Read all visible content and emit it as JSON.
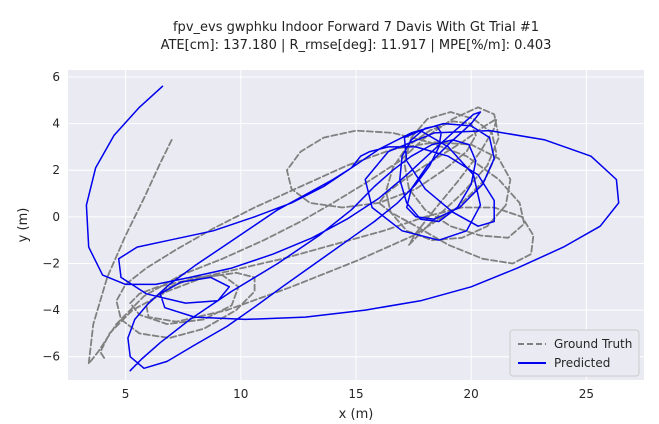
{
  "chart_data": {
    "type": "line",
    "title": "fpv_evs gwphku Indoor Forward 7 Davis With Gt Trial #1",
    "subtitle": "ATE[cm]: 137.180 | R_rmse[deg]: 11.917 | MPE[%/m]: 0.403",
    "xlabel": "x (m)",
    "ylabel": "y (m)",
    "xlim": [
      2.5,
      27.5
    ],
    "ylim": [
      -7.0,
      6.3
    ],
    "xticks": [
      5,
      10,
      15,
      20,
      25
    ],
    "yticks": [
      -6,
      -4,
      -2,
      0,
      2,
      4,
      6
    ],
    "ytick_labels": [
      "−6",
      "−4",
      "−2",
      "0",
      "2",
      "4",
      "6"
    ],
    "grid": true,
    "legend": "lower-right",
    "series": [
      {
        "name": "Ground Truth",
        "color": "#808080",
        "style": "dashed",
        "x": [
          7.0,
          6.5,
          5.8,
          5.0,
          4.2,
          3.6,
          3.4,
          3.8,
          4.6,
          5.8,
          7.4,
          9.2,
          11.0,
          12.6,
          14.0,
          15.5,
          16.9,
          18.0,
          19.2,
          20.3,
          21.0,
          21.2,
          20.7,
          19.6,
          18.4,
          17.6,
          17.3,
          17.6,
          18.4,
          19.4,
          20.4,
          21.0,
          21.1,
          20.6,
          19.6,
          18.3,
          17.1,
          16.3,
          16.0,
          16.5,
          17.6,
          19.0,
          20.5,
          21.8,
          22.6,
          22.7,
          22.2,
          21.0,
          19.6,
          18.0,
          16.2,
          14.0,
          11.8,
          9.6,
          7.8,
          6.4,
          5.6,
          5.2,
          5.6,
          6.8,
          8.4,
          9.6,
          9.9,
          9.2,
          8.0,
          6.7,
          5.9,
          6.0,
          7.2,
          9.4,
          12.2,
          15.0,
          17.5,
          19.4,
          20.6,
          21.1,
          20.9,
          20.1,
          19.1,
          18.1,
          17.4,
          17.1,
          17.3,
          18.0,
          19.1,
          20.4,
          21.6,
          22.3,
          22.1,
          21.2,
          19.8,
          18.2,
          16.6,
          15.0,
          13.6,
          12.6,
          12.0,
          12.2,
          13.0,
          14.4,
          16.0,
          17.6,
          18.8,
          19.8,
          20.2,
          20.0,
          19.2,
          18.2,
          17.2,
          16.6,
          16.3,
          16.5,
          17.2,
          18.3,
          19.6,
          20.7,
          21.5,
          21.7,
          21.2,
          20.0,
          18.4,
          16.6,
          14.6,
          12.6,
          10.6,
          8.8,
          7.2,
          5.9,
          5.0,
          4.6,
          4.8,
          5.6,
          6.9,
          8.4,
          9.8,
          10.6,
          10.6,
          9.8,
          8.4,
          6.8,
          5.3,
          4.3,
          3.9,
          4.1
        ],
        "y": [
          3.3,
          2.3,
          0.8,
          -0.8,
          -2.6,
          -4.6,
          -6.3,
          -5.8,
          -4.6,
          -3.4,
          -2.5,
          -1.8,
          -1.0,
          -0.2,
          0.6,
          1.5,
          2.4,
          3.4,
          4.2,
          4.7,
          4.4,
          3.4,
          2.2,
          1.0,
          -0.1,
          -0.9,
          -1.2,
          -0.7,
          0.3,
          1.5,
          2.8,
          3.8,
          4.2,
          3.9,
          3.2,
          2.4,
          1.6,
          1.0,
          0.6,
          0.2,
          -0.4,
          -1.2,
          -1.8,
          -2.0,
          -1.6,
          -0.8,
          0.0,
          0.4,
          0.4,
          0.0,
          -0.6,
          -1.2,
          -1.8,
          -2.3,
          -2.7,
          -3.0,
          -3.3,
          -3.7,
          -4.2,
          -4.6,
          -4.4,
          -3.8,
          -3.0,
          -2.5,
          -2.6,
          -3.1,
          -3.8,
          -4.3,
          -4.5,
          -4.0,
          -3.0,
          -1.9,
          -0.8,
          0.4,
          1.6,
          2.7,
          3.6,
          4.2,
          4.5,
          4.2,
          3.4,
          2.3,
          1.2,
          0.3,
          -0.4,
          -0.8,
          -0.9,
          -0.3,
          0.6,
          1.6,
          2.6,
          3.2,
          3.6,
          3.7,
          3.4,
          2.8,
          2.0,
          1.2,
          0.6,
          0.4,
          0.6,
          1.2,
          2.0,
          2.8,
          3.5,
          4.0,
          4.1,
          3.7,
          3.0,
          2.1,
          1.1,
          0.2,
          -0.6,
          -1.0,
          -0.9,
          -0.4,
          0.5,
          1.6,
          2.5,
          3.1,
          3.2,
          2.9,
          2.2,
          1.3,
          0.4,
          -0.5,
          -1.4,
          -2.2,
          -2.9,
          -3.6,
          -4.4,
          -5.0,
          -5.2,
          -4.8,
          -4.0,
          -3.2,
          -2.6,
          -2.4,
          -2.6,
          -3.2,
          -4.0,
          -5.0,
          -5.8,
          -6.1
        ]
      },
      {
        "name": "Predicted",
        "color": "#0000ee",
        "style": "solid",
        "x": [
          6.6,
          5.6,
          4.5,
          3.7,
          3.3,
          3.4,
          4.0,
          5.0,
          6.3,
          7.8,
          9.6,
          11.4,
          13.1,
          14.6,
          16.0,
          17.2,
          18.3,
          19.3,
          20.1,
          20.4,
          20.0,
          19.1,
          18.1,
          17.4,
          17.2,
          17.6,
          18.4,
          19.5,
          20.5,
          21.0,
          20.8,
          20.0,
          18.8,
          17.4,
          16.0,
          14.8,
          13.6,
          12.2,
          10.6,
          8.8,
          6.9,
          5.5,
          4.7,
          4.8,
          5.9,
          7.6,
          9.0,
          9.5,
          8.7,
          7.4,
          6.5,
          6.7,
          8.0,
          10.2,
          12.8,
          15.4,
          17.8,
          20.0,
          22.0,
          24.0,
          25.6,
          26.4,
          26.3,
          25.2,
          23.2,
          20.8,
          18.4,
          16.4,
          15.4,
          15.7,
          17.0,
          18.6,
          19.8,
          20.4,
          20.1,
          19.0,
          17.8,
          17.1,
          17.2,
          18.0,
          19.2,
          20.3,
          21.0,
          21.0,
          20.3,
          19.0,
          17.6,
          16.4,
          15.6,
          15.2,
          14.8,
          14.0,
          12.9,
          11.6,
          10.4,
          9.2,
          8.0,
          6.9,
          6.0,
          5.4,
          5.1,
          5.2,
          5.8,
          6.8,
          8.0,
          9.4,
          10.7,
          11.8,
          12.8,
          13.8,
          14.8,
          15.8,
          16.8,
          17.6,
          18.2,
          18.6,
          18.7,
          18.5,
          18.0,
          17.4,
          17.0,
          16.9,
          17.2,
          17.8,
          18.6,
          19.4,
          20.0,
          20.2,
          19.9,
          19.2,
          18.3,
          17.4,
          16.6,
          15.8,
          14.8,
          13.4,
          11.6,
          9.6,
          7.8,
          6.5,
          5.7,
          5.3,
          5.2
        ],
        "y": [
          5.6,
          4.7,
          3.5,
          2.1,
          0.5,
          -1.3,
          -2.5,
          -2.9,
          -2.9,
          -2.6,
          -2.2,
          -1.6,
          -0.9,
          -0.1,
          0.8,
          1.8,
          2.8,
          3.7,
          4.4,
          4.5,
          4.0,
          3.2,
          2.2,
          1.2,
          0.4,
          0.0,
          -0.1,
          0.4,
          1.4,
          2.5,
          3.4,
          3.9,
          4.0,
          3.6,
          2.9,
          2.1,
          1.3,
          0.6,
          0.0,
          -0.6,
          -1.0,
          -1.3,
          -1.8,
          -2.6,
          -3.3,
          -3.7,
          -3.6,
          -3.0,
          -2.6,
          -2.8,
          -3.3,
          -3.9,
          -4.3,
          -4.4,
          -4.3,
          -4.0,
          -3.6,
          -3.0,
          -2.2,
          -1.3,
          -0.4,
          0.6,
          1.6,
          2.6,
          3.3,
          3.7,
          3.6,
          2.8,
          1.6,
          0.4,
          -0.6,
          -1.0,
          -0.6,
          0.5,
          1.8,
          3.0,
          3.7,
          3.4,
          2.4,
          1.2,
          0.2,
          -0.4,
          -0.2,
          0.7,
          1.8,
          2.6,
          3.0,
          3.0,
          2.8,
          2.6,
          2.1,
          1.6,
          1.0,
          0.3,
          -0.5,
          -1.3,
          -2.1,
          -2.9,
          -3.7,
          -4.4,
          -5.2,
          -6.0,
          -6.5,
          -6.2,
          -5.5,
          -4.7,
          -3.8,
          -3.0,
          -2.3,
          -1.6,
          -0.9,
          -0.2,
          0.6,
          1.4,
          2.2,
          3.0,
          3.6,
          3.9,
          3.8,
          3.3,
          2.6,
          1.6,
          0.6,
          -0.1,
          -0.2,
          0.4,
          1.4,
          2.4,
          3.1,
          3.3,
          3.1,
          2.6,
          2.0,
          1.3,
          0.3,
          -0.8,
          -2.0,
          -3.2,
          -4.4,
          -5.4,
          -6.1,
          -6.5,
          -6.6
        ]
      }
    ]
  }
}
